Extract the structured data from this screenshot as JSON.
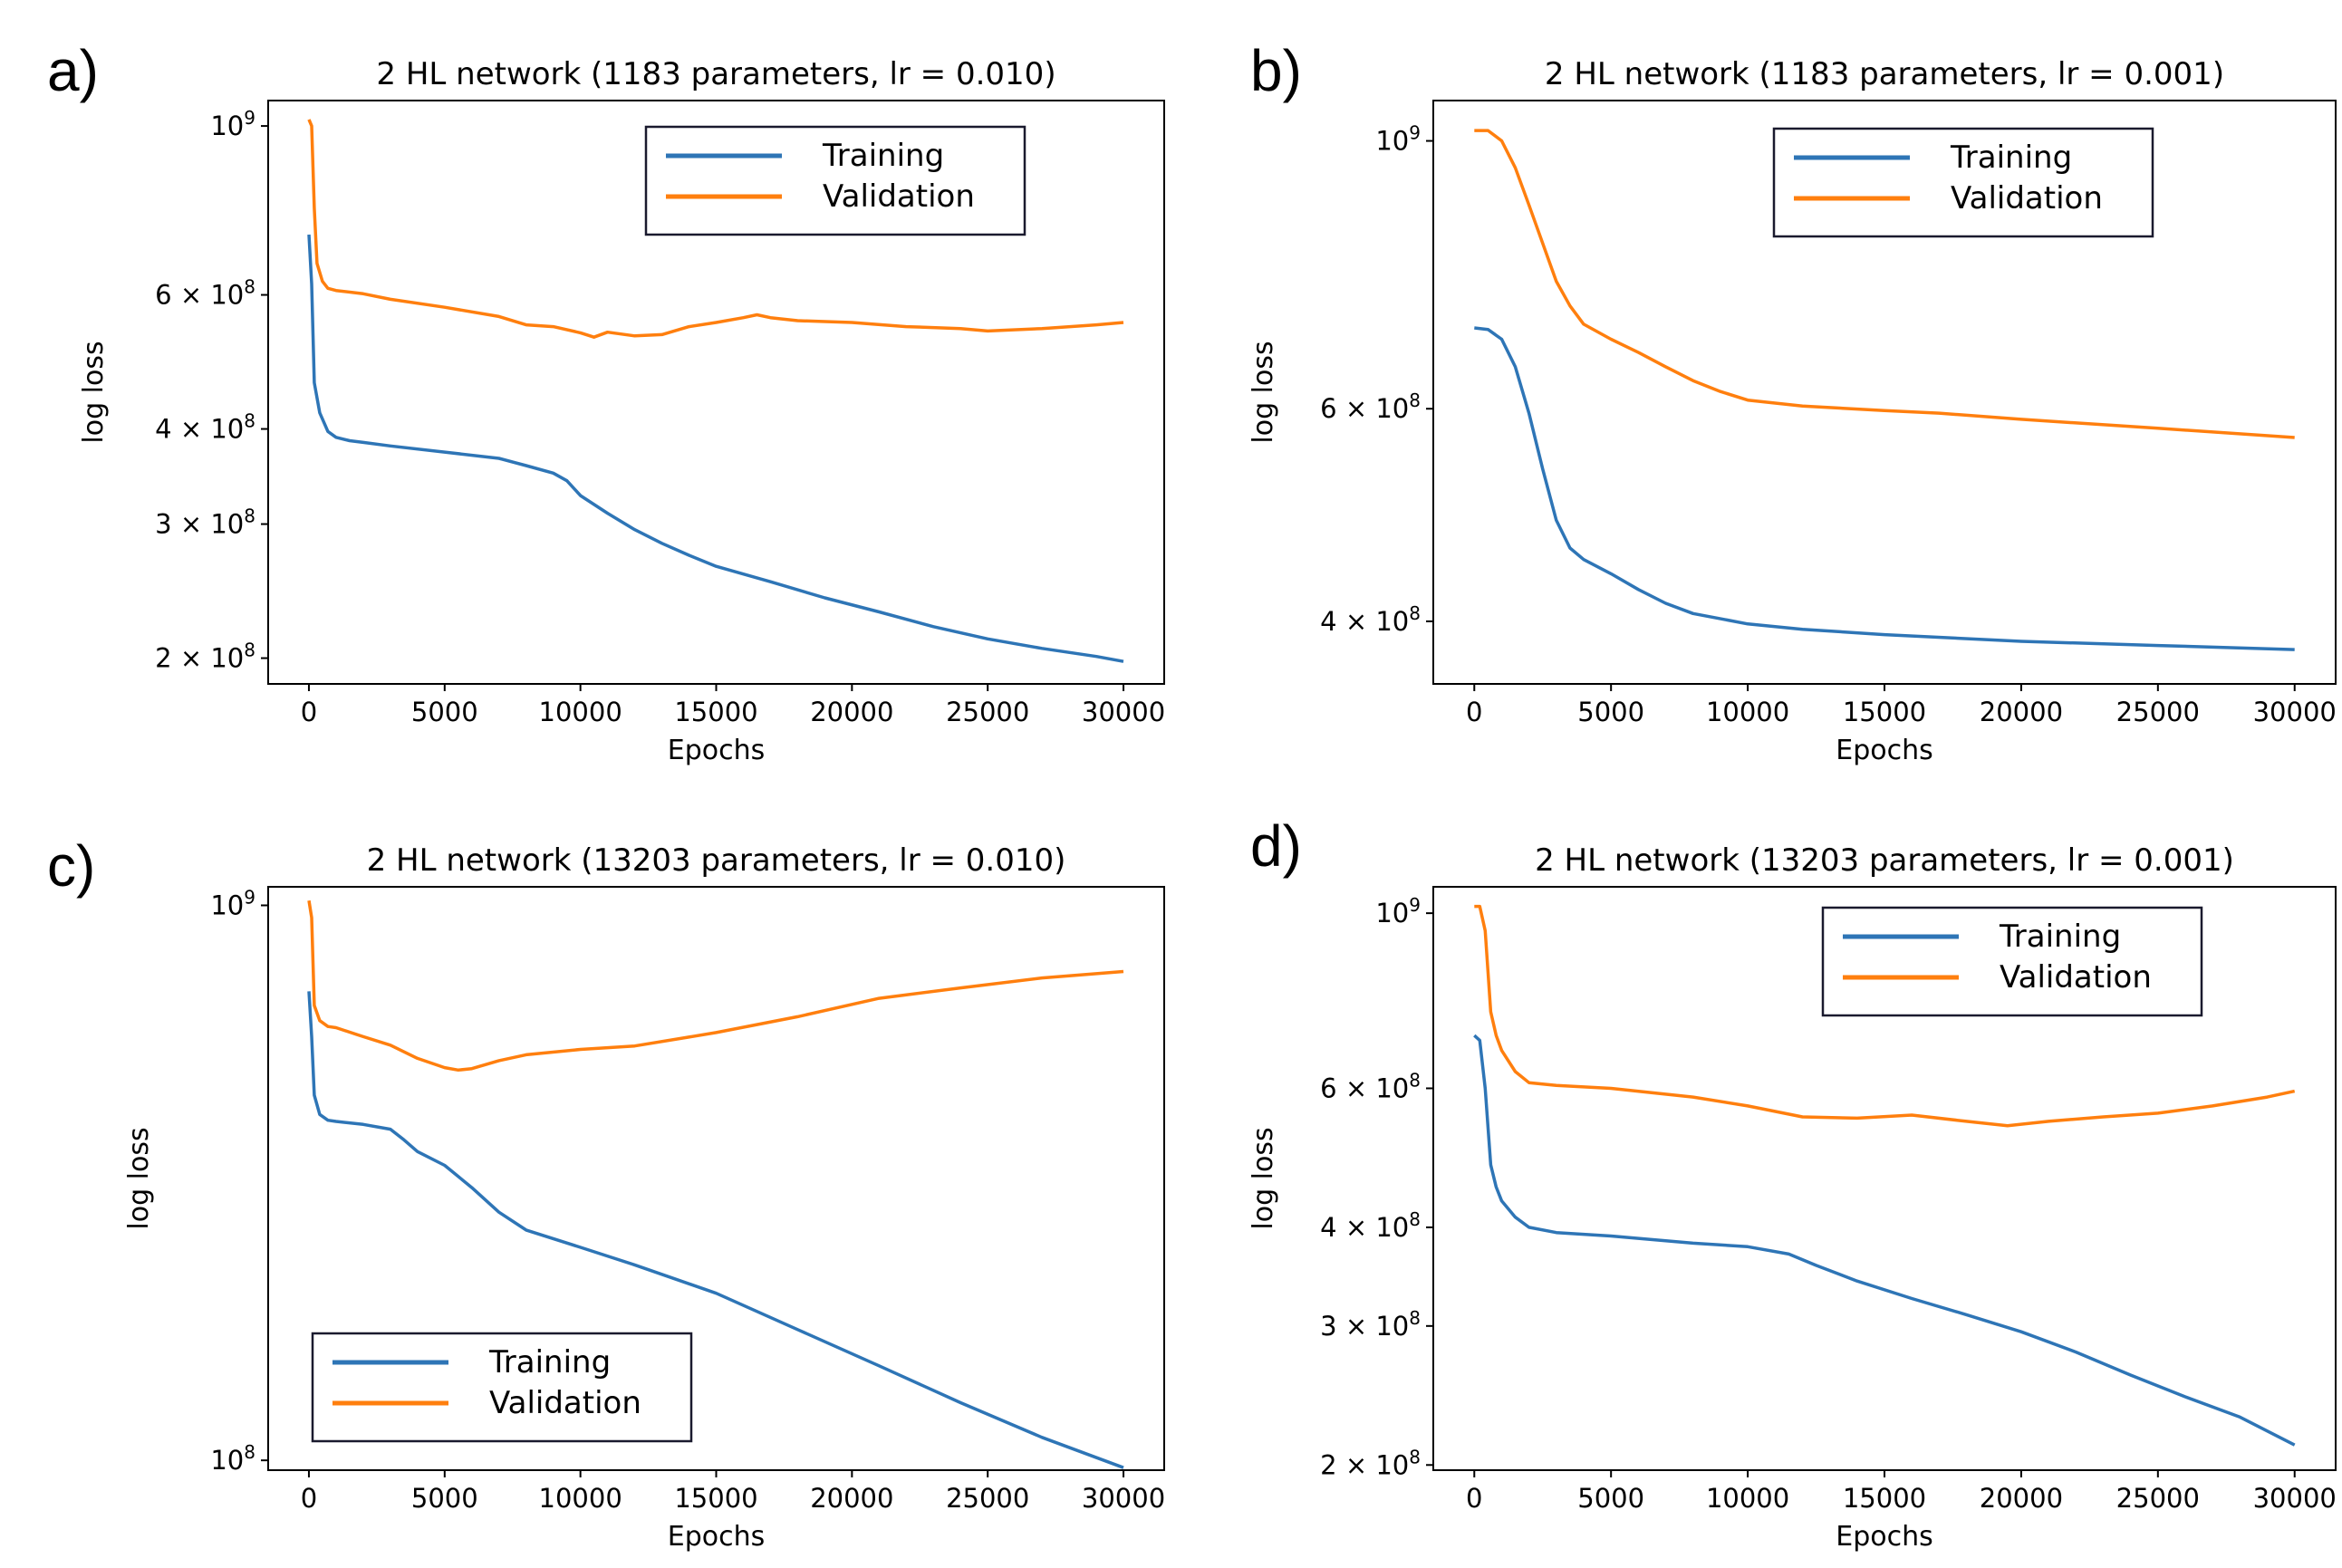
{
  "colors": {
    "training": "#2e75b6",
    "validation": "#ff7f0e"
  },
  "chart_data": [
    {
      "letter": "a)",
      "type": "line",
      "title": "2 HL network (1183 parameters, lr = 0.010)",
      "xlabel": "Epochs",
      "ylabel": "log loss",
      "yscale": "log",
      "xlim": [
        -1500,
        31500
      ],
      "ylim": [
        185000000.0,
        1080000000.0
      ],
      "xticks": [
        0,
        5000,
        10000,
        15000,
        20000,
        25000,
        30000
      ],
      "xtick_labels": [
        "0",
        "5000",
        "10000",
        "15000",
        "20000",
        "25000",
        "30000"
      ],
      "yticks": [
        {
          "value": 1000000000.0,
          "mant": "10",
          "exp": "9"
        },
        {
          "value": 600000000.0,
          "mant": "6 × 10",
          "exp": "8"
        },
        {
          "value": 400000000.0,
          "mant": "4 × 10",
          "exp": "8"
        },
        {
          "value": 300000000.0,
          "mant": "3 × 10",
          "exp": "8"
        },
        {
          "value": 200000000.0,
          "mant": "2 × 10",
          "exp": "8"
        }
      ],
      "legend": "top-right",
      "series": [
        {
          "name": "Training",
          "color_key": "training",
          "x": [
            0,
            100,
            200,
            400,
            700,
            1000,
            1500,
            2000,
            3000,
            5000,
            7000,
            8000,
            9000,
            9500,
            10000,
            11000,
            12000,
            13000,
            14000,
            15000,
            17000,
            19000,
            21000,
            23000,
            25000,
            27000,
            29000,
            30000
          ],
          "y": [
            720000000.0,
            620000000.0,
            460000000.0,
            420000000.0,
            397000000.0,
            390000000.0,
            386000000.0,
            384000000.0,
            380000000.0,
            373000000.0,
            366000000.0,
            358000000.0,
            350000000.0,
            342000000.0,
            327000000.0,
            310000000.0,
            295000000.0,
            283000000.0,
            273000000.0,
            264000000.0,
            252000000.0,
            240000000.0,
            230000000.0,
            220000000.0,
            212000000.0,
            206000000.0,
            201000000.0,
            198000000.0
          ]
        },
        {
          "name": "Validation",
          "color_key": "validation",
          "x": [
            0,
            100,
            200,
            300,
            500,
            700,
            1000,
            2000,
            3000,
            5000,
            7000,
            8000,
            9000,
            10000,
            10500,
            11000,
            12000,
            13000,
            14000,
            15000,
            16000,
            16500,
            17000,
            18000,
            20000,
            22000,
            24000,
            25000,
            27000,
            29000,
            30000
          ],
          "y": [
            1020000000.0,
            1000000000.0,
            780000000.0,
            660000000.0,
            625000000.0,
            612000000.0,
            608000000.0,
            602000000.0,
            592000000.0,
            578000000.0,
            562000000.0,
            548000000.0,
            545000000.0,
            535000000.0,
            528000000.0,
            536000000.0,
            530000000.0,
            532000000.0,
            545000000.0,
            552000000.0,
            560000000.0,
            565000000.0,
            560000000.0,
            555000000.0,
            552000000.0,
            545000000.0,
            542000000.0,
            538000000.0,
            542000000.0,
            548000000.0,
            552000000.0
          ]
        }
      ]
    },
    {
      "letter": "b)",
      "type": "line",
      "title": "2 HL network (1183 parameters, lr = 0.001)",
      "xlabel": "Epochs",
      "ylabel": "log loss",
      "yscale": "log",
      "xlim": [
        -1500,
        31500
      ],
      "ylim": [
        355000000.0,
        1080000000.0
      ],
      "xticks": [
        0,
        5000,
        10000,
        15000,
        20000,
        25000,
        30000
      ],
      "xtick_labels": [
        "0",
        "5000",
        "10000",
        "15000",
        "20000",
        "25000",
        "30000"
      ],
      "yticks": [
        {
          "value": 1000000000.0,
          "mant": "10",
          "exp": "9"
        },
        {
          "value": 600000000.0,
          "mant": "6 × 10",
          "exp": "8"
        },
        {
          "value": 400000000.0,
          "mant": "4 × 10",
          "exp": "8"
        }
      ],
      "legend": "top-right",
      "series": [
        {
          "name": "Training",
          "color_key": "training",
          "x": [
            0,
            500,
            1000,
            1500,
            2000,
            2500,
            3000,
            3500,
            4000,
            5000,
            6000,
            7000,
            8000,
            10000,
            12000,
            15000,
            20000,
            25000,
            30000
          ],
          "y": [
            700000000.0,
            698000000.0,
            685000000.0,
            650000000.0,
            595000000.0,
            535000000.0,
            485000000.0,
            460000000.0,
            450000000.0,
            438000000.0,
            425000000.0,
            414000000.0,
            406000000.0,
            398000000.0,
            394000000.0,
            390000000.0,
            385000000.0,
            382000000.0,
            379000000.0
          ]
        },
        {
          "name": "Validation",
          "color_key": "validation",
          "x": [
            0,
            500,
            1000,
            1500,
            2000,
            3000,
            3500,
            4000,
            5000,
            6000,
            7000,
            8000,
            9000,
            10000,
            12000,
            15000,
            17000,
            20000,
            25000,
            30000
          ],
          "y": [
            1020000000.0,
            1020000000.0,
            1000000000.0,
            950000000.0,
            885000000.0,
            765000000.0,
            730000000.0,
            705000000.0,
            685000000.0,
            668000000.0,
            650000000.0,
            633000000.0,
            620000000.0,
            610000000.0,
            603000000.0,
            598000000.0,
            595000000.0,
            588000000.0,
            578000000.0,
            568000000.0
          ]
        }
      ]
    },
    {
      "letter": "c)",
      "type": "line",
      "title": "2 HL network (13203 parameters, lr = 0.010)",
      "xlabel": "Epochs",
      "ylabel": "log loss",
      "yscale": "log",
      "xlim": [
        -1500,
        31500
      ],
      "ylim": [
        96000000.0,
        1080000000.0
      ],
      "xticks": [
        0,
        5000,
        10000,
        15000,
        20000,
        25000,
        30000
      ],
      "xtick_labels": [
        "0",
        "5000",
        "10000",
        "15000",
        "20000",
        "25000",
        "30000"
      ],
      "yticks": [
        {
          "value": 1000000000.0,
          "mant": "10",
          "exp": "9"
        },
        {
          "value": 100000000.0,
          "mant": "10",
          "exp": "8"
        }
      ],
      "legend": "bottom-left",
      "series": [
        {
          "name": "Training",
          "color_key": "training",
          "x": [
            0,
            100,
            200,
            400,
            700,
            1000,
            2000,
            3000,
            3500,
            4000,
            5000,
            6000,
            7000,
            8000,
            10000,
            12000,
            15000,
            18000,
            21000,
            24000,
            27000,
            30000
          ],
          "y": [
            700000000.0,
            580000000.0,
            455000000.0,
            420000000.0,
            410000000.0,
            408000000.0,
            403000000.0,
            395000000.0,
            378000000.0,
            360000000.0,
            340000000.0,
            310000000.0,
            280000000.0,
            260000000.0,
            242000000.0,
            225000000.0,
            200000000.0,
            172000000.0,
            148000000.0,
            127000000.0,
            110000000.0,
            97000000.0
          ]
        },
        {
          "name": "Validation",
          "color_key": "validation",
          "x": [
            0,
            100,
            200,
            400,
            700,
            1000,
            2000,
            3000,
            4000,
            5000,
            5500,
            6000,
            7000,
            8000,
            10000,
            12000,
            15000,
            18000,
            21000,
            24000,
            27000,
            30000
          ],
          "y": [
            1020000000.0,
            950000000.0,
            660000000.0,
            620000000.0,
            605000000.0,
            602000000.0,
            580000000.0,
            560000000.0,
            530000000.0,
            510000000.0,
            505000000.0,
            508000000.0,
            525000000.0,
            538000000.0,
            550000000.0,
            558000000.0,
            590000000.0,
            630000000.0,
            680000000.0,
            710000000.0,
            740000000.0,
            760000000.0
          ]
        }
      ]
    },
    {
      "letter": "d)",
      "type": "line",
      "title": "2 HL network (13203 parameters, lr = 0.001)",
      "xlabel": "Epochs",
      "ylabel": "log loss",
      "yscale": "log",
      "xlim": [
        -1500,
        31500
      ],
      "ylim": [
        197000000.0,
        1080000000.0
      ],
      "xticks": [
        0,
        5000,
        10000,
        15000,
        20000,
        25000,
        30000
      ],
      "xtick_labels": [
        "0",
        "5000",
        "10000",
        "15000",
        "20000",
        "25000",
        "30000"
      ],
      "yticks": [
        {
          "value": 1000000000.0,
          "mant": "10",
          "exp": "9"
        },
        {
          "value": 600000000.0,
          "mant": "6 × 10",
          "exp": "8"
        },
        {
          "value": 400000000.0,
          "mant": "4 × 10",
          "exp": "8"
        },
        {
          "value": 300000000.0,
          "mant": "3 × 10",
          "exp": "8"
        },
        {
          "value": 200000000.0,
          "mant": "2 × 10",
          "exp": "8"
        }
      ],
      "legend": "top-right",
      "series": [
        {
          "name": "Training",
          "color_key": "training",
          "x": [
            0,
            200,
            400,
            600,
            800,
            1000,
            1500,
            2000,
            3000,
            5000,
            8000,
            10000,
            11500,
            12500,
            14000,
            16000,
            18000,
            20000,
            22000,
            24000,
            26000,
            28000,
            30000
          ],
          "y": [
            700000000.0,
            690000000.0,
            600000000.0,
            480000000.0,
            450000000.0,
            432000000.0,
            412000000.0,
            400000000.0,
            394000000.0,
            390000000.0,
            382000000.0,
            378000000.0,
            370000000.0,
            358000000.0,
            342000000.0,
            325000000.0,
            310000000.0,
            295000000.0,
            278000000.0,
            260000000.0,
            244000000.0,
            230000000.0,
            212000000.0
          ]
        },
        {
          "name": "Validation",
          "color_key": "validation",
          "x": [
            0,
            200,
            400,
            600,
            800,
            1000,
            1500,
            2000,
            3000,
            5000,
            8000,
            10000,
            12000,
            14000,
            16000,
            18000,
            19500,
            21000,
            23000,
            25000,
            27000,
            29000,
            30000
          ],
          "y": [
            1020000000.0,
            1020000000.0,
            950000000.0,
            750000000.0,
            700000000.0,
            670000000.0,
            630000000.0,
            610000000.0,
            605000000.0,
            600000000.0,
            585000000.0,
            570000000.0,
            552000000.0,
            550000000.0,
            555000000.0,
            545000000.0,
            538000000.0,
            545000000.0,
            552000000.0,
            558000000.0,
            570000000.0,
            585000000.0,
            595000000.0
          ]
        }
      ]
    }
  ]
}
